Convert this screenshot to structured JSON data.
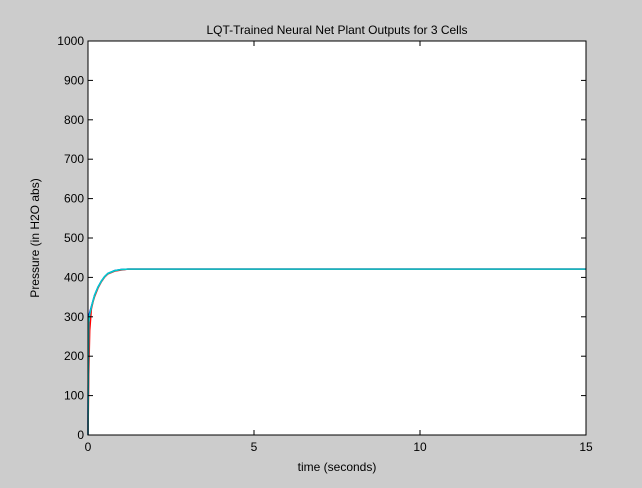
{
  "chart_data": {
    "type": "line",
    "title": "LQT-Trained Neural Net Plant Outputs for 3 Cells",
    "xlabel": "time (seconds)",
    "ylabel": "Pressure (in H2O abs)",
    "xlim": [
      0,
      15
    ],
    "ylim": [
      0,
      1000
    ],
    "xticks": [
      0,
      5,
      10,
      15
    ],
    "yticks": [
      0,
      100,
      200,
      300,
      400,
      500,
      600,
      700,
      800,
      900,
      1000
    ],
    "grid": false,
    "series": [
      {
        "color": "#0000ff",
        "x": [
          0,
          0.02,
          0.05,
          0.1,
          0.15,
          0.2,
          0.3,
          0.4,
          0.5,
          0.6,
          0.8,
          1.0,
          1.2,
          2,
          5,
          10,
          15
        ],
        "y": [
          0,
          300,
          310,
          325,
          340,
          355,
          375,
          390,
          402,
          410,
          417,
          420,
          421,
          421,
          421,
          421,
          421
        ]
      },
      {
        "color": "#ff0000",
        "x": [
          0,
          0.02,
          0.05,
          0.1,
          0.15,
          0.2,
          0.3,
          0.4,
          0.5,
          0.6,
          0.8,
          1.0,
          1.2,
          2,
          5,
          10,
          15
        ],
        "y": [
          0,
          150,
          265,
          320,
          338,
          352,
          373,
          389,
          401,
          409,
          416,
          419,
          421,
          421,
          421,
          421,
          421
        ]
      },
      {
        "color": "#00cccc",
        "x": [
          0,
          0.02,
          0.05,
          0.1,
          0.15,
          0.2,
          0.3,
          0.4,
          0.5,
          0.6,
          0.8,
          1.0,
          1.2,
          2,
          5,
          10,
          15
        ],
        "y": [
          0,
          285,
          305,
          324,
          340,
          355,
          375,
          390,
          402,
          410,
          417,
          420,
          421,
          421,
          421,
          421,
          421
        ]
      }
    ]
  }
}
